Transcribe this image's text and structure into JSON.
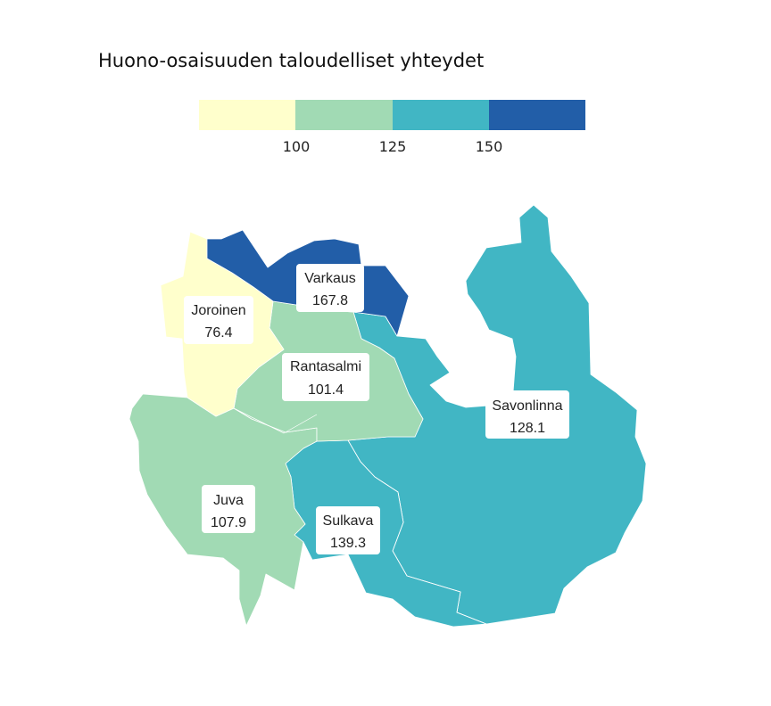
{
  "title": "Huono-osaisuuden taloudelliset yhteydet",
  "legend": {
    "colors": [
      "#ffffcc",
      "#a1dab4",
      "#41b6c4",
      "#225ea8"
    ],
    "breaks": [
      "100",
      "125",
      "150"
    ]
  },
  "regions": [
    {
      "key": "joroinen",
      "name": "Joroinen",
      "value": "76.4",
      "color": "#ffffcc"
    },
    {
      "key": "varkaus",
      "name": "Varkaus",
      "value": "167.8",
      "color": "#225ea8"
    },
    {
      "key": "rantasalmi",
      "name": "Rantasalmi",
      "value": "101.4",
      "color": "#a1dab4"
    },
    {
      "key": "savonlinna",
      "name": "Savonlinna",
      "value": "128.1",
      "color": "#41b6c4"
    },
    {
      "key": "juva",
      "name": "Juva",
      "value": "107.9",
      "color": "#a1dab4"
    },
    {
      "key": "sulkava",
      "name": "Sulkava",
      "value": "139.3",
      "color": "#41b6c4"
    }
  ]
}
